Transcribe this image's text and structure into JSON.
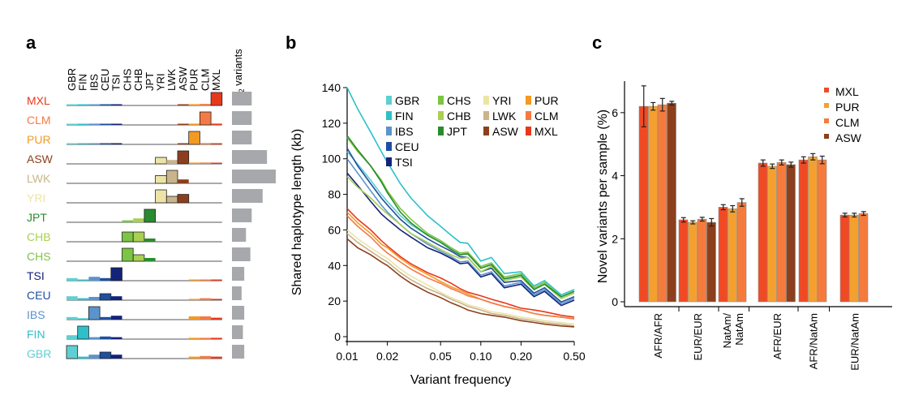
{
  "panels": {
    "a": {
      "label": "a",
      "f2_header": [
        "f",
        "2",
        " variants"
      ],
      "populations": [
        "GBR",
        "FIN",
        "IBS",
        "CEU",
        "TSI",
        "CHS",
        "CHB",
        "JPT",
        "YRI",
        "LWK",
        "ASW",
        "PUR",
        "CLM",
        "MXL"
      ],
      "rows": [
        "MXL",
        "CLM",
        "PUR",
        "ASW",
        "LWK",
        "YRI",
        "JPT",
        "CHB",
        "CHS",
        "TSI",
        "CEU",
        "IBS",
        "FIN",
        "GBR"
      ],
      "colors": {
        "GBR": "#5fcfd2",
        "FIN": "#2ec0c9",
        "IBS": "#5b93cc",
        "CEU": "#1e4fa0",
        "TSI": "#13237a",
        "CHS": "#7cc443",
        "CHB": "#a9cf53",
        "JPT": "#2a8b2e",
        "YRI": "#ece4a6",
        "LWK": "#c9b48c",
        "ASW": "#8c3f1c",
        "PUR": "#f39a23",
        "CLM": "#f47a45",
        "MXL": "#e8381c"
      },
      "bar_color": "#a6a8ab"
    },
    "b": {
      "label": "b"
    },
    "c": {
      "label": "c"
    }
  },
  "chart_data": [
    {
      "type": "bar",
      "panel": "a",
      "description_rows": [
        "MXL",
        "CLM",
        "PUR",
        "ASW",
        "LWK",
        "YRI",
        "JPT",
        "CHB",
        "CHS",
        "TSI",
        "CEU",
        "IBS",
        "FIN",
        "GBR"
      ],
      "categories": [
        "GBR",
        "FIN",
        "IBS",
        "CEU",
        "TSI",
        "CHS",
        "CHB",
        "JPT",
        "YRI",
        "LWK",
        "ASW",
        "PUR",
        "CLM",
        "MXL"
      ],
      "sharing": {
        "MXL": [
          0.03,
          0.02,
          0.08,
          0.03,
          0.03,
          0,
          0,
          0,
          0,
          0,
          0.02,
          0.1,
          0.12,
          1.0
        ],
        "CLM": [
          0.03,
          0.02,
          0.1,
          0.03,
          0.03,
          0,
          0,
          0,
          0,
          0,
          0.03,
          0.1,
          1.0,
          0.1
        ],
        "PUR": [
          0.03,
          0.02,
          0.07,
          0.03,
          0.03,
          0,
          0,
          0,
          0,
          0,
          0.05,
          1.0,
          0.1,
          0.06
        ],
        "ASW": [
          0,
          0,
          0,
          0,
          0,
          0,
          0,
          0,
          0.5,
          0.3,
          1.0,
          0.1,
          0.1,
          0.05
        ],
        "LWK": [
          0,
          0,
          0,
          0,
          0,
          0,
          0,
          0,
          0.6,
          1.0,
          0.3,
          0,
          0,
          0
        ],
        "YRI": [
          0,
          0,
          0,
          0,
          0,
          0,
          0,
          0,
          1.0,
          0.5,
          0.65,
          0,
          0,
          0
        ],
        "JPT": [
          0,
          0,
          0,
          0,
          0,
          0.15,
          0.3,
          1.0,
          0,
          0,
          0,
          0,
          0,
          0
        ],
        "CHB": [
          0,
          0,
          0,
          0,
          0,
          0.75,
          0.75,
          0.25,
          0,
          0,
          0,
          0,
          0,
          0
        ],
        "CHS": [
          0,
          0,
          0,
          0,
          0,
          1.0,
          0.5,
          0.25,
          0,
          0,
          0,
          0,
          0,
          0
        ],
        "TSI": [
          0.2,
          0.05,
          0.3,
          0.2,
          1.0,
          0,
          0,
          0,
          0,
          0,
          0,
          0.05,
          0.05,
          0.05
        ],
        "CEU": [
          0.3,
          0.15,
          0.25,
          0.5,
          0.3,
          0,
          0,
          0,
          0,
          0,
          0,
          0.1,
          0.15,
          0.1
        ],
        "IBS": [
          0.2,
          0.1,
          1.0,
          0.2,
          0.3,
          0,
          0,
          0,
          0,
          0,
          0,
          0.25,
          0.25,
          0.15
        ],
        "FIN": [
          0.3,
          1.0,
          0.15,
          0.2,
          0.15,
          0,
          0,
          0,
          0,
          0,
          0,
          0.1,
          0.1,
          0.1
        ],
        "GBR": [
          1.0,
          0.15,
          0.3,
          0.5,
          0.3,
          0,
          0,
          0,
          0,
          0,
          0,
          0.15,
          0.2,
          0.15
        ]
      },
      "f2_variants": {
        "MXL": 0.45,
        "CLM": 0.45,
        "PUR": 0.45,
        "ASW": 0.8,
        "LWK": 1.0,
        "YRI": 0.7,
        "JPT": 0.45,
        "CHB": 0.32,
        "CHS": 0.42,
        "TSI": 0.28,
        "CEU": 0.22,
        "IBS": 0.28,
        "FIN": 0.25,
        "GBR": 0.28
      }
    },
    {
      "type": "line",
      "panel": "b",
      "xlabel": "Variant frequency",
      "ylabel": "Shared haplotype length (kb)",
      "xscale": "log",
      "xlim": [
        0.01,
        0.5
      ],
      "ylim": [
        0,
        140
      ],
      "xticks": [
        0.01,
        0.02,
        0.05,
        0.1,
        0.2,
        0.5
      ],
      "xtick_labels": [
        "0.01",
        "0.02",
        "0.05",
        "0.10",
        "0.20",
        "0.50"
      ],
      "yticks": [
        0,
        20,
        40,
        60,
        80,
        100,
        120,
        140
      ],
      "x": [
        0.01,
        0.012,
        0.015,
        0.018,
        0.02,
        0.025,
        0.03,
        0.04,
        0.05,
        0.06,
        0.07,
        0.08,
        0.1,
        0.12,
        0.15,
        0.2,
        0.25,
        0.3,
        0.4,
        0.5
      ],
      "legend": [
        [
          "GBR",
          "CHS",
          "YRI",
          "PUR"
        ],
        [
          "FIN",
          "CHB",
          "LWK",
          "CLM"
        ],
        [
          "IBS",
          "JPT",
          "ASW",
          "MXL"
        ],
        [
          "CEU"
        ],
        [
          "TSI"
        ]
      ],
      "series": [
        {
          "name": "GBR",
          "color": "#5fcfd2",
          "values": [
            104,
            97,
            88,
            80,
            76,
            68,
            63,
            57,
            53,
            50,
            47,
            44,
            41,
            38,
            35,
            31,
            29,
            27,
            24,
            22
          ]
        },
        {
          "name": "FIN",
          "color": "#2ec0c9",
          "values": [
            140,
            128,
            115,
            104,
            98,
            86,
            78,
            68,
            62,
            57,
            53,
            50,
            45,
            42,
            38,
            34,
            31,
            29,
            26,
            24
          ]
        },
        {
          "name": "IBS",
          "color": "#5b93cc",
          "values": [
            100,
            92,
            82,
            74,
            70,
            63,
            58,
            52,
            48,
            45,
            42,
            40,
            37,
            34,
            31,
            28,
            26,
            24,
            21,
            19
          ]
        },
        {
          "name": "CEU",
          "color": "#1e4fa0",
          "values": [
            106,
            96,
            86,
            78,
            74,
            66,
            61,
            55,
            51,
            48,
            45,
            42,
            39,
            36,
            33,
            29,
            27,
            25,
            22,
            20
          ]
        },
        {
          "name": "TSI",
          "color": "#13237a",
          "values": [
            92,
            85,
            76,
            69,
            66,
            60,
            56,
            50,
            47,
            44,
            41,
            39,
            36,
            33,
            30,
            27,
            25,
            23,
            20,
            18
          ]
        },
        {
          "name": "CHS",
          "color": "#7cc443",
          "values": [
            112,
            104,
            96,
            88,
            82,
            72,
            66,
            58,
            54,
            50,
            47,
            45,
            42,
            39,
            36,
            33,
            30,
            28,
            25,
            23
          ]
        },
        {
          "name": "CHB",
          "color": "#a9cf53",
          "values": [
            90,
            84,
            78,
            72,
            69,
            63,
            58,
            53,
            49,
            46,
            44,
            42,
            39,
            37,
            34,
            31,
            29,
            27,
            24,
            22
          ]
        },
        {
          "name": "JPT",
          "color": "#2a8b2e",
          "values": [
            113,
            105,
            96,
            87,
            81,
            70,
            64,
            57,
            53,
            49,
            46,
            44,
            41,
            38,
            35,
            32,
            29,
            27,
            25,
            23
          ]
        },
        {
          "name": "YRI",
          "color": "#ece4a6",
          "values": [
            60,
            55,
            50,
            46,
            44,
            38,
            34,
            29,
            25,
            22,
            20,
            18,
            16,
            14,
            13,
            11,
            10,
            9,
            8,
            7
          ]
        },
        {
          "name": "LWK",
          "color": "#c9b48c",
          "values": [
            58,
            53,
            48,
            44,
            42,
            36,
            32,
            27,
            24,
            21,
            19,
            17,
            15,
            13,
            12,
            10,
            9,
            8,
            7,
            6
          ]
        },
        {
          "name": "ASW",
          "color": "#8c3f1c",
          "values": [
            55,
            50,
            46,
            42,
            40,
            34,
            30,
            25,
            22,
            19,
            17,
            15,
            13,
            12,
            11,
            9,
            8,
            7,
            6,
            5.5
          ]
        },
        {
          "name": "PUR",
          "color": "#f39a23",
          "values": [
            70,
            64,
            58,
            52,
            50,
            44,
            40,
            35,
            31,
            28,
            26,
            24,
            21,
            19,
            17,
            15,
            13,
            12,
            11,
            10
          ]
        },
        {
          "name": "CLM",
          "color": "#f47a45",
          "values": [
            68,
            62,
            56,
            50,
            47,
            42,
            38,
            33,
            30,
            27,
            25,
            23,
            21,
            19,
            17,
            15,
            13,
            12,
            11,
            10
          ]
        },
        {
          "name": "MXL",
          "color": "#e8381c",
          "values": [
            72,
            66,
            60,
            54,
            51,
            45,
            41,
            36,
            33,
            30,
            27,
            25,
            23,
            21,
            19,
            16,
            15,
            14,
            12,
            11
          ]
        }
      ]
    },
    {
      "type": "bar",
      "panel": "c",
      "ylabel": "Novel variants per sample (%)",
      "ylim": [
        0,
        7
      ],
      "yticks": [
        0,
        2,
        4,
        6
      ],
      "categories": [
        "AFR/AFR",
        "EUR/EUR",
        "NatAm/\nNatAm",
        "AFR/EUR",
        "AFR/NatAm",
        "EUR/NatAm"
      ],
      "category_lines": [
        [
          "AFR/AFR"
        ],
        [
          "EUR/EUR"
        ],
        [
          "NatAm/",
          "NatAm"
        ],
        [
          "AFR/EUR"
        ],
        [
          "AFR/NatAm"
        ],
        [
          "EUR/NatAm"
        ]
      ],
      "legend": [
        "MXL",
        "PUR",
        "CLM",
        "ASW"
      ],
      "series": [
        {
          "name": "MXL",
          "color": "#f04a25",
          "values": [
            6.2,
            2.6,
            3.0,
            4.4,
            4.5,
            2.75
          ],
          "errors": [
            0.65,
            0.07,
            0.08,
            0.1,
            0.1,
            0.06
          ]
        },
        {
          "name": "PUR",
          "color": "#f5a02e",
          "values": [
            6.2,
            2.52,
            2.95,
            4.3,
            4.6,
            2.75
          ],
          "errors": [
            0.12,
            0.05,
            0.1,
            0.07,
            0.1,
            0.06
          ]
        },
        {
          "name": "CLM",
          "color": "#f57b3d",
          "values": [
            6.25,
            2.62,
            3.15,
            4.42,
            4.5,
            2.8
          ],
          "errors": [
            0.2,
            0.06,
            0.12,
            0.08,
            0.12,
            0.06
          ]
        },
        {
          "name": "ASW",
          "color": "#8c3f1c",
          "values": [
            6.3,
            2.52,
            null,
            4.35,
            null,
            null
          ],
          "errors": [
            0.06,
            0.12,
            null,
            0.08,
            null,
            null
          ]
        }
      ]
    }
  ]
}
